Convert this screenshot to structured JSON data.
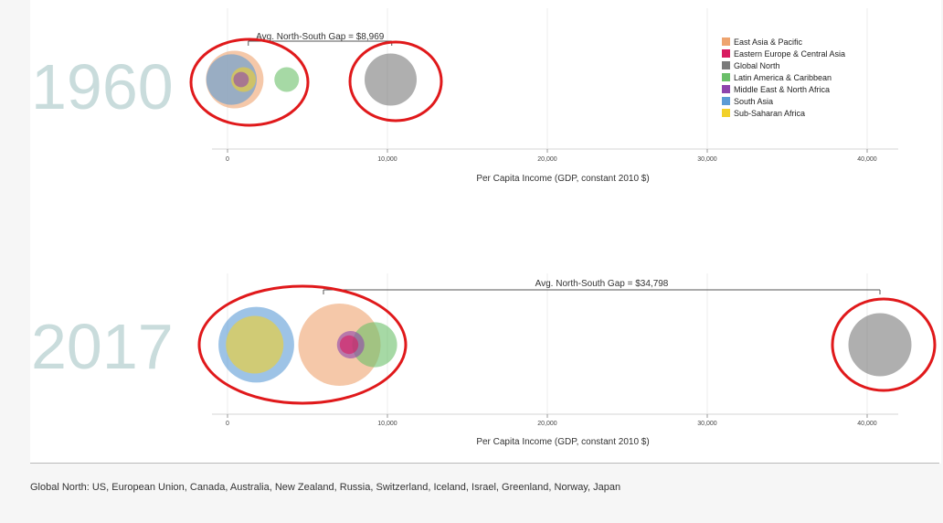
{
  "footnote": "Global North: US, European Union, Canada, Australia, New Zealand, Russia, Switzerland, Iceland, Israel, Greenland, Norway, Japan",
  "chart_data": {
    "type": "scatter",
    "subtype": "bubble",
    "xlabel": "Per Capita Income (GDP, constant 2010 $)",
    "xlim": [
      0,
      42000
    ],
    "xticks": [
      0,
      10000,
      20000,
      30000,
      40000
    ],
    "xtick_labels": [
      "0",
      "10,000",
      "20,000",
      "30,000",
      "40,000"
    ],
    "grid": true,
    "legend_position": "top-right",
    "colors": {
      "East Asia & Pacific": "#eea46f",
      "Eastern Europe & Central Asia": "#d81b60",
      "Global North": "#7a7a7a",
      "Latin America & Caribbean": "#6abf69",
      "Middle East & North Africa": "#8e44ad",
      "South Asia": "#5b9bd5",
      "Sub-Saharan Africa": "#f2d12a"
    },
    "legend": [
      "East Asia & Pacific",
      "Eastern Europe & Central Asia",
      "Global North",
      "Latin America & Caribbean",
      "Middle East & North Africa",
      "South Asia",
      "Sub-Saharan Africa"
    ],
    "panels": [
      {
        "year": "1960",
        "gap_label": "Avg. North-South Gap = $8,969",
        "gap": [
          1300,
          10270
        ],
        "points": [
          {
            "region": "East Asia & Pacific",
            "x": 450,
            "size": 1.05
          },
          {
            "region": "South Asia",
            "x": 250,
            "size": 0.92
          },
          {
            "region": "Sub-Saharan Africa",
            "x": 1000,
            "size": 0.45
          },
          {
            "region": "Middle East & North Africa",
            "x": 850,
            "size": 0.28
          },
          {
            "region": "Latin America & Caribbean",
            "x": 3700,
            "size": 0.45
          },
          {
            "region": "Global North",
            "x": 10200,
            "size": 0.95
          }
        ]
      },
      {
        "year": "2017",
        "gap_label": "Avg. North-South Gap = $34,798",
        "gap": [
          6000,
          40800
        ],
        "points": [
          {
            "region": "South Asia",
            "x": 1800,
            "size": 1.38
          },
          {
            "region": "Sub-Saharan Africa",
            "x": 1700,
            "size": 1.05
          },
          {
            "region": "East Asia & Pacific",
            "x": 7000,
            "size": 1.5
          },
          {
            "region": "Latin America & Caribbean",
            "x": 9200,
            "size": 0.82
          },
          {
            "region": "Middle East & North Africa",
            "x": 7700,
            "size": 0.5
          },
          {
            "region": "Eastern Europe & Central Asia",
            "x": 7600,
            "size": 0.34
          },
          {
            "region": "Global North",
            "x": 40800,
            "size": 1.15
          }
        ]
      }
    ]
  }
}
